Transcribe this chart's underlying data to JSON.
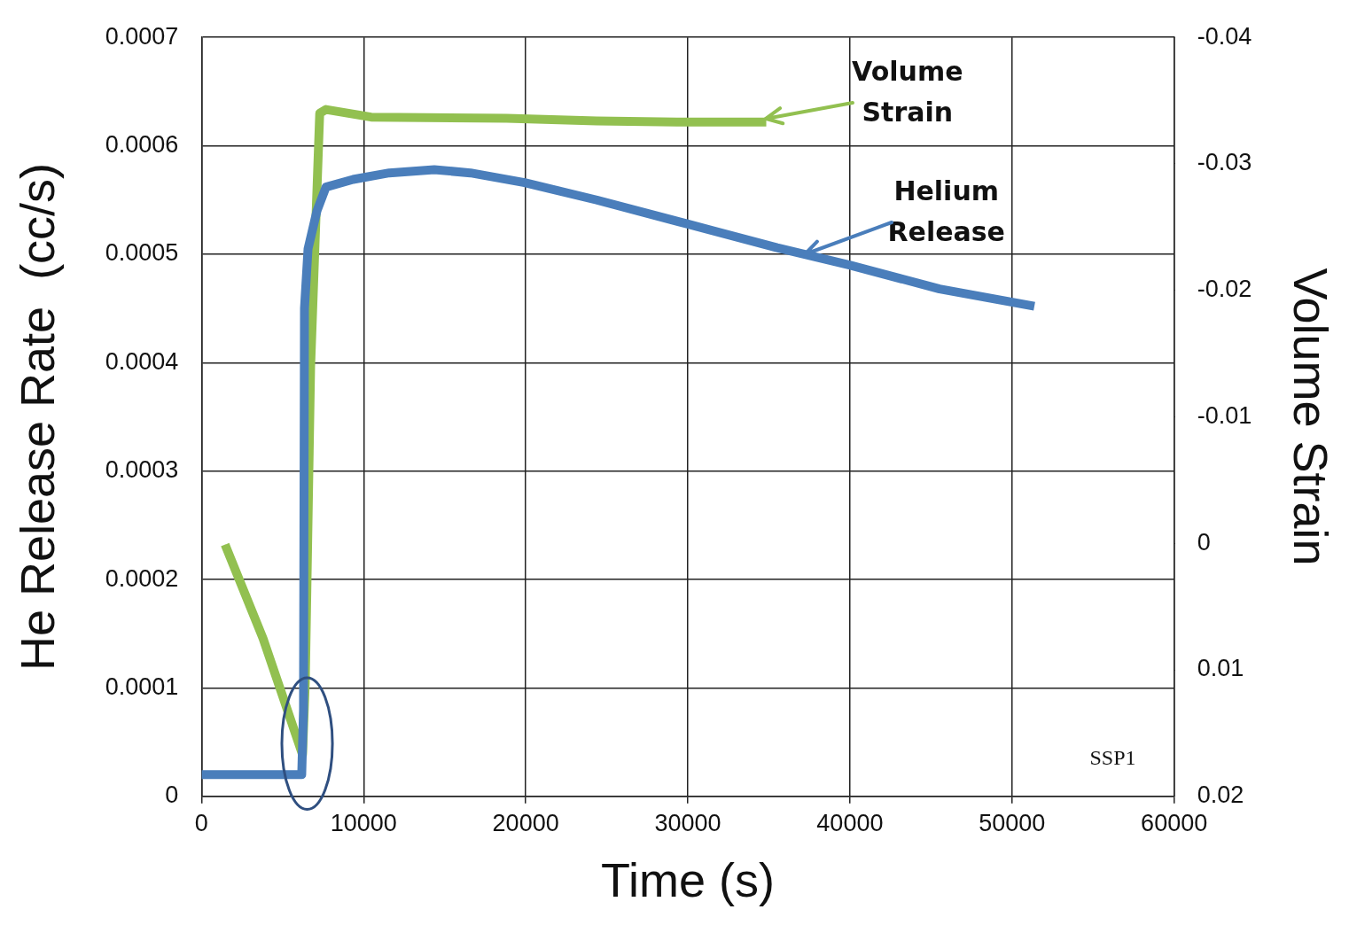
{
  "chart_data": {
    "type": "line",
    "xlabel": "Time (s)",
    "ylabel": "He Release Rate  (cc/s)",
    "y2label": "Volume Strain",
    "xlim": [
      0,
      60000
    ],
    "xticks": [
      0,
      10000,
      20000,
      30000,
      40000,
      50000,
      60000
    ],
    "ylim": [
      0,
      0.0007
    ],
    "yticks": [
      0,
      0.0001,
      0.0002,
      0.0003,
      0.0004,
      0.0005,
      0.0006,
      0.0007
    ],
    "y2lim": [
      0.02,
      -0.04
    ],
    "y2ticks": [
      0.02,
      0.01,
      0,
      -0.01,
      -0.02,
      -0.03,
      -0.04
    ],
    "grid": true,
    "legend": false,
    "marker": "none",
    "line_style": "solid",
    "annotations": [
      {
        "text": "Volume Strain",
        "x": 34800,
        "y": 0.000625
      },
      {
        "text": "Helium Release",
        "x": 37200,
        "y": 0.0005
      },
      "SSP1"
    ],
    "series": [
      {
        "color": "#4a7ebb",
        "x": [
          0,
          2100,
          6180,
          6290,
          6350,
          6570,
          7120,
          7680,
          9350,
          11580,
          14360,
          16590,
          19930,
          24380,
          29950,
          35510,
          39970,
          45530,
          51380
        ],
        "values": [
          2e-05,
          2e-05,
          2e-05,
          8e-05,
          0.00045,
          0.000505,
          0.00054,
          0.000562,
          0.000569,
          0.000575,
          0.000578,
          0.000575,
          0.000566,
          0.00055,
          0.000528,
          0.000506,
          0.00049,
          0.000468,
          0.000452
        ]
      },
      {
        "axis": "y2",
        "color": "#92c050",
        "x": [
          1450,
          3790,
          6230,
          6400,
          6730,
          7290,
          7680,
          10460,
          18810,
          24380,
          29950,
          34840
        ],
        "values": [
          0.0001,
          0.0075,
          0.0167,
          0.011,
          -0.014,
          -0.034,
          -0.0343,
          -0.0337,
          -0.0336,
          -0.0334,
          -0.0333,
          -0.0333
        ]
      }
    ]
  }
}
